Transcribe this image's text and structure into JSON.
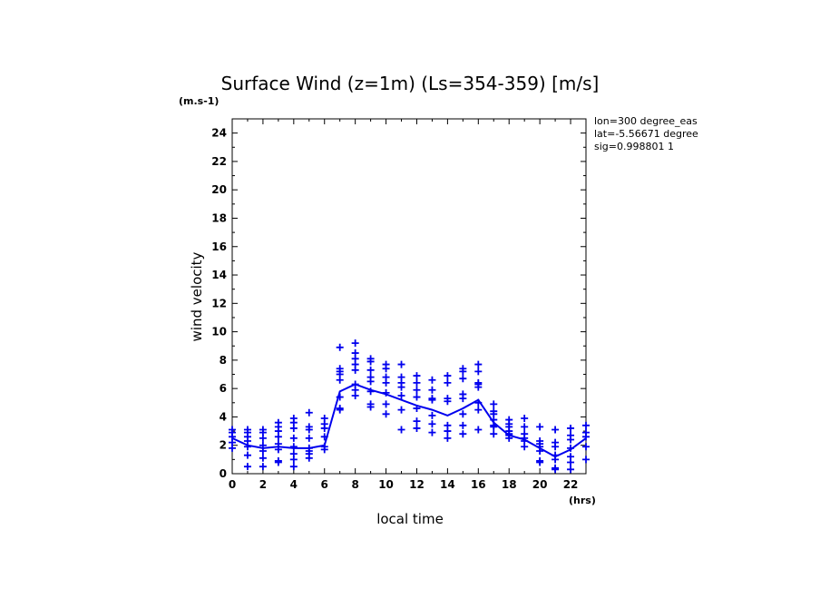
{
  "chart_data": {
    "type": "scatter",
    "title": "Surface Wind (z=1m) (Ls=354-359) [m/s]",
    "y_unit": "(m.s-1)",
    "x_unit": "(hrs)",
    "xlabel": "local time",
    "ylabel": "wind velocity",
    "xlim": [
      0,
      23
    ],
    "ylim": [
      0,
      25
    ],
    "x_ticks": [
      0,
      2,
      4,
      6,
      8,
      10,
      12,
      14,
      16,
      18,
      20,
      22
    ],
    "y_ticks": [
      0,
      2,
      4,
      6,
      8,
      10,
      12,
      14,
      16,
      18,
      20,
      22,
      24
    ],
    "annotations": [
      "lon=300 degree_eas",
      "lat=-5.56671 degree",
      "sig=0.998801 1"
    ],
    "color": "#0000ee",
    "grid": false,
    "series": [
      {
        "marker": "cross",
        "points": [
          [
            0,
            3.1
          ],
          [
            0,
            2.9
          ],
          [
            0,
            2.6
          ],
          [
            0,
            2.2
          ],
          [
            0,
            1.8
          ],
          [
            1,
            3.1
          ],
          [
            1,
            2.9
          ],
          [
            1,
            2.6
          ],
          [
            1,
            2.3
          ],
          [
            1,
            1.9
          ],
          [
            1,
            1.3
          ],
          [
            1,
            0.5
          ],
          [
            2,
            3.1
          ],
          [
            2,
            2.9
          ],
          [
            2,
            2.5
          ],
          [
            2,
            2.0
          ],
          [
            2,
            1.6
          ],
          [
            2,
            1.1
          ],
          [
            2,
            0.5
          ],
          [
            3,
            3.6
          ],
          [
            3,
            3.3
          ],
          [
            3,
            3.0
          ],
          [
            3,
            2.6
          ],
          [
            3,
            2.1
          ],
          [
            3,
            1.7
          ],
          [
            3,
            0.9
          ],
          [
            3,
            0.8
          ],
          [
            4,
            3.9
          ],
          [
            4,
            3.6
          ],
          [
            4,
            3.2
          ],
          [
            4,
            2.5
          ],
          [
            4,
            1.9
          ],
          [
            4,
            1.4
          ],
          [
            4,
            1.0
          ],
          [
            4,
            0.5
          ],
          [
            5,
            4.3
          ],
          [
            5,
            3.3
          ],
          [
            5,
            3.1
          ],
          [
            5,
            2.5
          ],
          [
            5,
            1.8
          ],
          [
            5,
            1.6
          ],
          [
            5,
            1.4
          ],
          [
            5,
            1.1
          ],
          [
            6,
            3.9
          ],
          [
            6,
            3.5
          ],
          [
            6,
            3.2
          ],
          [
            6,
            2.6
          ],
          [
            6,
            1.9
          ],
          [
            6,
            1.7
          ],
          [
            7,
            8.9
          ],
          [
            7,
            7.4
          ],
          [
            7,
            7.2
          ],
          [
            7,
            7.0
          ],
          [
            7,
            6.6
          ],
          [
            7,
            5.4
          ],
          [
            7,
            4.6
          ],
          [
            7,
            4.5
          ],
          [
            8,
            9.2
          ],
          [
            8,
            8.5
          ],
          [
            8,
            8.1
          ],
          [
            8,
            7.7
          ],
          [
            8,
            7.3
          ],
          [
            8,
            6.3
          ],
          [
            8,
            5.9
          ],
          [
            8,
            5.5
          ],
          [
            9,
            8.1
          ],
          [
            9,
            7.9
          ],
          [
            9,
            7.3
          ],
          [
            9,
            6.8
          ],
          [
            9,
            6.5
          ],
          [
            9,
            5.8
          ],
          [
            9,
            4.9
          ],
          [
            9,
            4.7
          ],
          [
            10,
            7.7
          ],
          [
            10,
            7.4
          ],
          [
            10,
            6.8
          ],
          [
            10,
            6.4
          ],
          [
            10,
            5.7
          ],
          [
            10,
            4.9
          ],
          [
            10,
            4.2
          ],
          [
            11,
            7.7
          ],
          [
            11,
            6.8
          ],
          [
            11,
            6.4
          ],
          [
            11,
            6.1
          ],
          [
            11,
            5.5
          ],
          [
            11,
            4.5
          ],
          [
            11,
            3.1
          ],
          [
            12,
            6.9
          ],
          [
            12,
            6.4
          ],
          [
            12,
            5.9
          ],
          [
            12,
            5.4
          ],
          [
            12,
            4.6
          ],
          [
            12,
            3.7
          ],
          [
            12,
            3.2
          ],
          [
            13,
            6.6
          ],
          [
            13,
            5.9
          ],
          [
            13,
            5.3
          ],
          [
            13,
            5.2
          ],
          [
            13,
            4.1
          ],
          [
            13,
            3.5
          ],
          [
            13,
            2.9
          ],
          [
            14,
            6.9
          ],
          [
            14,
            6.4
          ],
          [
            14,
            5.3
          ],
          [
            14,
            5.1
          ],
          [
            14,
            3.4
          ],
          [
            14,
            3.0
          ],
          [
            14,
            2.5
          ],
          [
            15,
            7.4
          ],
          [
            15,
            7.2
          ],
          [
            15,
            6.7
          ],
          [
            15,
            5.6
          ],
          [
            15,
            5.3
          ],
          [
            15,
            4.2
          ],
          [
            15,
            3.4
          ],
          [
            15,
            2.8
          ],
          [
            16,
            7.7
          ],
          [
            16,
            7.2
          ],
          [
            16,
            6.4
          ],
          [
            16,
            6.3
          ],
          [
            16,
            6.1
          ],
          [
            16,
            5.0
          ],
          [
            16,
            4.5
          ],
          [
            16,
            3.1
          ],
          [
            17,
            4.9
          ],
          [
            17,
            4.4
          ],
          [
            17,
            4.2
          ],
          [
            17,
            3.8
          ],
          [
            17,
            3.4
          ],
          [
            17,
            3.3
          ],
          [
            17,
            2.8
          ],
          [
            18,
            3.8
          ],
          [
            18,
            3.5
          ],
          [
            18,
            3.3
          ],
          [
            18,
            3.0
          ],
          [
            18,
            2.8
          ],
          [
            18,
            2.7
          ],
          [
            18,
            2.5
          ],
          [
            19,
            3.9
          ],
          [
            19,
            3.3
          ],
          [
            19,
            2.8
          ],
          [
            19,
            2.5
          ],
          [
            19,
            2.3
          ],
          [
            19,
            1.9
          ],
          [
            20,
            3.3
          ],
          [
            20,
            2.3
          ],
          [
            20,
            2.1
          ],
          [
            20,
            1.9
          ],
          [
            20,
            1.6
          ],
          [
            20,
            0.9
          ],
          [
            20,
            0.8
          ],
          [
            21,
            3.1
          ],
          [
            21,
            2.2
          ],
          [
            21,
            1.9
          ],
          [
            21,
            1.3
          ],
          [
            21,
            1.0
          ],
          [
            21,
            0.4
          ],
          [
            21,
            0.3
          ],
          [
            22,
            3.2
          ],
          [
            22,
            2.7
          ],
          [
            22,
            2.4
          ],
          [
            22,
            1.8
          ],
          [
            22,
            1.2
          ],
          [
            22,
            0.8
          ],
          [
            22,
            0.3
          ],
          [
            23,
            3.4
          ],
          [
            23,
            2.9
          ],
          [
            23,
            2.6
          ],
          [
            23,
            1.9
          ],
          [
            23,
            1.0
          ]
        ]
      },
      {
        "marker": "line",
        "x": [
          0,
          1,
          2,
          3,
          4,
          5,
          6,
          7,
          8,
          9,
          10,
          11,
          12,
          13,
          14,
          15,
          16,
          17,
          18,
          19,
          20,
          21,
          22,
          23
        ],
        "y": [
          2.5,
          2.0,
          1.8,
          1.9,
          1.8,
          1.8,
          2.0,
          5.8,
          6.3,
          5.9,
          5.6,
          5.2,
          4.8,
          4.5,
          4.1,
          4.6,
          5.2,
          3.6,
          2.7,
          2.4,
          1.8,
          1.2,
          1.7,
          2.5
        ]
      }
    ]
  }
}
